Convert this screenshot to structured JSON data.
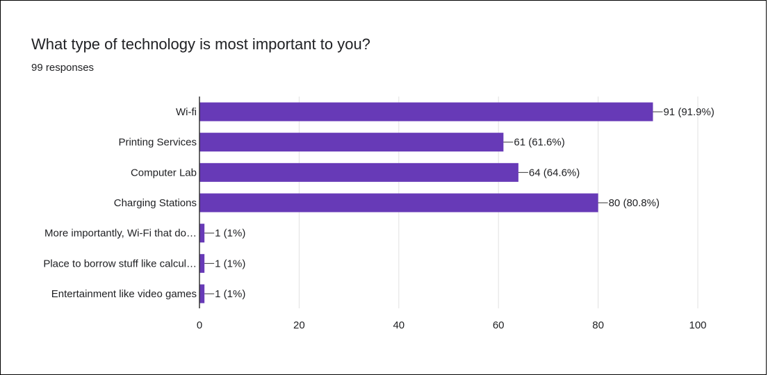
{
  "question": {
    "title": "What type of technology is most important to you?",
    "responses": "99 responses"
  },
  "colors": {
    "bar": "#673ab7",
    "grid": "#e0e0e0",
    "axis": "#333333",
    "text": "#202124"
  },
  "chart_data": {
    "type": "bar",
    "orientation": "horizontal",
    "categories": [
      "Wi-fi",
      "Printing Services",
      "Computer Lab",
      "Charging Stations",
      "More importantly, Wi-Fi that do…",
      "Place to borrow stuff like calcul…",
      "Entertainment like video games"
    ],
    "values": [
      91,
      61,
      64,
      80,
      1,
      1,
      1
    ],
    "data_labels": [
      "91 (91.9%)",
      "61 (61.6%)",
      "64 (64.6%)",
      "80 (80.8%)",
      "1 (1%)",
      "1 (1%)",
      "1 (1%)"
    ],
    "xlim": [
      0,
      100
    ],
    "xticks": [
      0,
      20,
      40,
      60,
      80,
      100
    ],
    "xlabel": "",
    "ylabel": "",
    "grid": true
  }
}
